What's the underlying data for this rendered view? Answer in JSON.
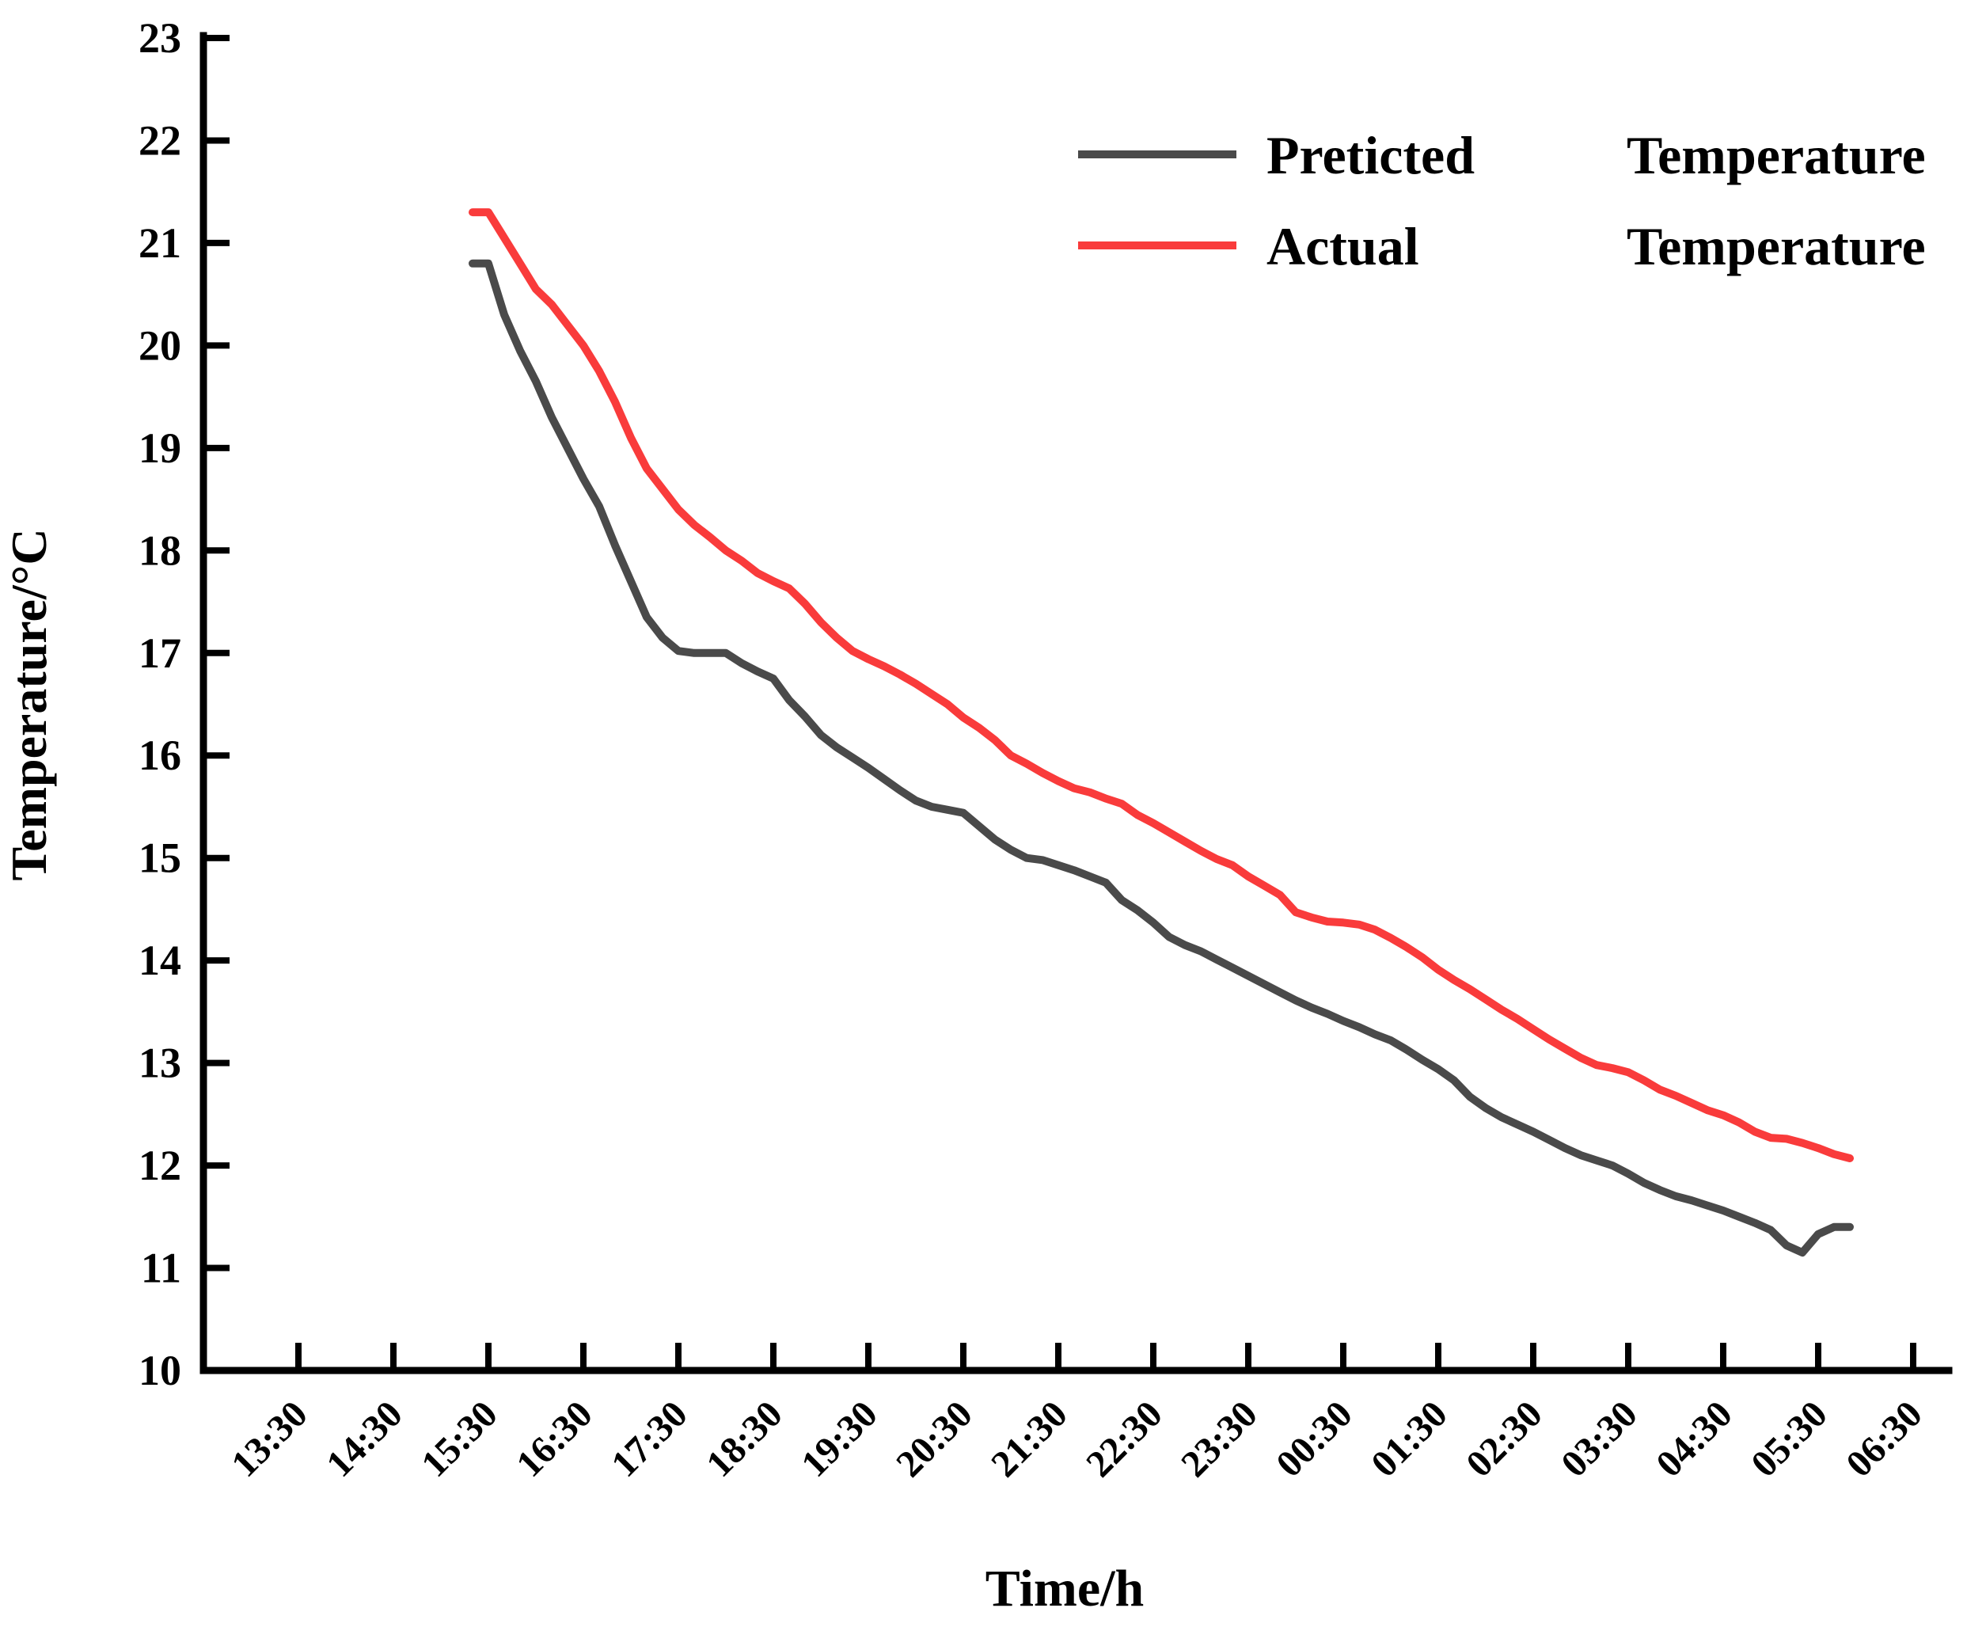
{
  "chart_data": {
    "type": "line",
    "title": "",
    "xlabel": "Time/h",
    "ylabel": "Temperature/°C",
    "grid": false,
    "legend_position": "upper right",
    "x_axis": {
      "tick_labels": [
        "13:30",
        "14:30",
        "15:30",
        "16:30",
        "17:30",
        "18:30",
        "19:30",
        "20:30",
        "21:30",
        "22:30",
        "23:30",
        "00:30",
        "01:30",
        "02:30",
        "03:30",
        "04:30",
        "05:30",
        "06:30"
      ],
      "tick_label_rotation_deg": 45
    },
    "y_axis": {
      "min": 10,
      "max": 23,
      "tick_labels": [
        "10",
        "11",
        "12",
        "13",
        "14",
        "15",
        "16",
        "17",
        "18",
        "19",
        "20",
        "21",
        "22",
        "23"
      ]
    },
    "series": [
      {
        "name": "Preticted Temperature",
        "color": "#4a4a4a",
        "x_start": "15:20",
        "x_interval_min": 10,
        "x_end": "05:50",
        "values": [
          20.8,
          20.8,
          20.3,
          19.95,
          19.65,
          19.3,
          19.0,
          18.7,
          18.43,
          18.05,
          17.7,
          17.35,
          17.15,
          17.02,
          17.0,
          17.0,
          17.0,
          16.9,
          16.82,
          16.75,
          16.54,
          16.38,
          16.2,
          16.08,
          15.98,
          15.88,
          15.77,
          15.66,
          15.56,
          15.5,
          15.47,
          15.44,
          15.31,
          15.18,
          15.08,
          15.0,
          14.98,
          14.93,
          14.88,
          14.82,
          14.76,
          14.59,
          14.49,
          14.37,
          14.23,
          14.15,
          14.09,
          14.01,
          13.93,
          13.85,
          13.77,
          13.69,
          13.61,
          13.54,
          13.48,
          13.41,
          13.35,
          13.28,
          13.22,
          13.13,
          13.03,
          12.94,
          12.83,
          12.67,
          12.56,
          12.47,
          12.4,
          12.33,
          12.25,
          12.17,
          12.1,
          12.05,
          12.0,
          11.92,
          11.83,
          11.76,
          11.7,
          11.66,
          11.61,
          11.56,
          11.5,
          11.44,
          11.37,
          11.22,
          11.15,
          11.33,
          11.4,
          11.4
        ]
      },
      {
        "name": "Actual Temperature",
        "color": "#f93b3b",
        "x_start": "15:20",
        "x_interval_min": 10,
        "x_end": "05:50",
        "values": [
          21.3,
          21.3,
          21.05,
          20.8,
          20.55,
          20.4,
          20.2,
          20.0,
          19.75,
          19.45,
          19.1,
          18.8,
          18.6,
          18.4,
          18.25,
          18.13,
          18.0,
          17.9,
          17.78,
          17.7,
          17.63,
          17.48,
          17.3,
          17.15,
          17.02,
          16.94,
          16.87,
          16.79,
          16.7,
          16.6,
          16.5,
          16.37,
          16.27,
          16.15,
          16.0,
          15.92,
          15.83,
          15.75,
          15.68,
          15.64,
          15.58,
          15.53,
          15.42,
          15.34,
          15.25,
          15.16,
          15.07,
          14.99,
          14.93,
          14.82,
          14.73,
          14.64,
          14.47,
          14.42,
          14.38,
          14.37,
          14.35,
          14.3,
          14.22,
          14.13,
          14.03,
          13.91,
          13.81,
          13.72,
          13.62,
          13.52,
          13.43,
          13.33,
          13.23,
          13.14,
          13.05,
          12.98,
          12.95,
          12.91,
          12.83,
          12.74,
          12.68,
          12.61,
          12.54,
          12.49,
          12.42,
          12.33,
          12.27,
          12.26,
          12.22,
          12.17,
          12.11,
          12.07
        ]
      }
    ]
  }
}
